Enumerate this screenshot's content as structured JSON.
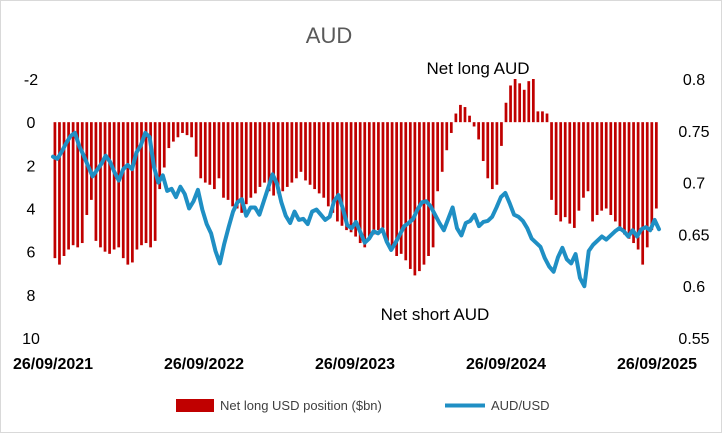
{
  "chart_data": {
    "type": "bar+line",
    "title": "AUD",
    "x_ticks": [
      "26/09/2021",
      "26/09/2022",
      "26/09/2023",
      "26/09/2024",
      "26/09/2025"
    ],
    "y_left": {
      "inverted": true,
      "range": [
        -2,
        10
      ],
      "ticks": [
        "-2",
        "0",
        "2",
        "4",
        "6",
        "8",
        "10"
      ]
    },
    "y_right": {
      "range": [
        0.55,
        0.8
      ],
      "ticks": [
        "0.8",
        "0.75",
        "0.7",
        "0.65",
        "0.6",
        "0.55"
      ]
    },
    "annotations": {
      "top": "Net long AUD",
      "bottom": "Net short AUD"
    },
    "series": [
      {
        "name": "Net long USD position ($bn)",
        "type": "bar",
        "axis": "left",
        "color": "#c00000",
        "values": [
          6.3,
          6.6,
          6.2,
          5.9,
          5.7,
          5.8,
          5.6,
          4.3,
          3.6,
          5.5,
          5.8,
          6.0,
          6.1,
          5.9,
          5.8,
          6.3,
          6.6,
          6.5,
          5.9,
          5.7,
          5.6,
          5.8,
          5.5,
          3.1,
          2.1,
          1.2,
          0.9,
          0.7,
          0.5,
          0.6,
          0.7,
          1.6,
          2.6,
          2.8,
          2.9,
          3.1,
          2.6,
          3.5,
          3.6,
          3.9,
          4.0,
          4.2,
          3.8,
          3.5,
          3.3,
          3.0,
          2.8,
          3.2,
          3.4,
          3.3,
          3.2,
          3.0,
          2.8,
          2.6,
          2.3,
          2.7,
          2.9,
          3.1,
          3.3,
          3.5,
          3.9,
          4.2,
          4.6,
          4.8,
          5.0,
          5.1,
          5.3,
          5.6,
          5.8,
          5.4,
          5.2,
          5.0,
          4.9,
          5.5,
          5.9,
          6.2,
          6.1,
          6.4,
          6.8,
          7.1,
          6.9,
          6.6,
          6.2,
          5.8,
          3.2,
          2.3,
          1.3,
          0.5,
          -0.4,
          -0.8,
          -0.7,
          -0.3,
          0.2,
          0.8,
          1.8,
          2.6,
          3.1,
          2.9,
          1.1,
          -0.9,
          -1.7,
          -2.0,
          -1.8,
          -1.5,
          -1.9,
          -2.0,
          -0.5,
          -0.5,
          -0.4,
          3.6,
          4.3,
          4.6,
          4.4,
          4.7,
          4.9,
          4.1,
          3.5,
          3.2,
          4.6,
          4.3,
          4.1,
          4.0,
          4.3,
          4.6,
          5.0,
          5.2,
          5.4,
          5.6,
          5.9,
          6.6,
          5.8,
          5.0,
          4.0
        ]
      },
      {
        "name": "AUD/USD",
        "type": "line",
        "axis": "right",
        "color": "#1f8fc4",
        "values": [
          0.725,
          0.723,
          0.73,
          0.738,
          0.745,
          0.748,
          0.735,
          0.726,
          0.716,
          0.706,
          0.712,
          0.718,
          0.726,
          0.72,
          0.71,
          0.702,
          0.713,
          0.717,
          0.713,
          0.729,
          0.736,
          0.748,
          0.744,
          0.715,
          0.7,
          0.707,
          0.692,
          0.694,
          0.686,
          0.696,
          0.689,
          0.675,
          0.682,
          0.693,
          0.674,
          0.66,
          0.651,
          0.634,
          0.622,
          0.641,
          0.657,
          0.672,
          0.681,
          0.684,
          0.668,
          0.676,
          0.676,
          0.669,
          0.682,
          0.695,
          0.708,
          0.699,
          0.681,
          0.668,
          0.661,
          0.672,
          0.664,
          0.665,
          0.66,
          0.672,
          0.674,
          0.669,
          0.664,
          0.667,
          0.682,
          0.688,
          0.675,
          0.659,
          0.656,
          0.662,
          0.652,
          0.642,
          0.646,
          0.653,
          0.651,
          0.655,
          0.643,
          0.635,
          0.642,
          0.65,
          0.658,
          0.661,
          0.665,
          0.674,
          0.681,
          0.682,
          0.677,
          0.669,
          0.661,
          0.654,
          0.665,
          0.676,
          0.656,
          0.649,
          0.661,
          0.663,
          0.669,
          0.658,
          0.662,
          0.663,
          0.667,
          0.676,
          0.686,
          0.69,
          0.68,
          0.669,
          0.667,
          0.663,
          0.656,
          0.646,
          0.642,
          0.638,
          0.627,
          0.619,
          0.614,
          0.628,
          0.637,
          0.626,
          0.622,
          0.631,
          0.608,
          0.6,
          0.634,
          0.64,
          0.644,
          0.648,
          0.645,
          0.649,
          0.653,
          0.656,
          0.653,
          0.648,
          0.654,
          0.648,
          0.655,
          0.657,
          0.654,
          0.664,
          0.655
        ]
      }
    ],
    "legend": {
      "position": "bottom"
    },
    "grid": false
  }
}
